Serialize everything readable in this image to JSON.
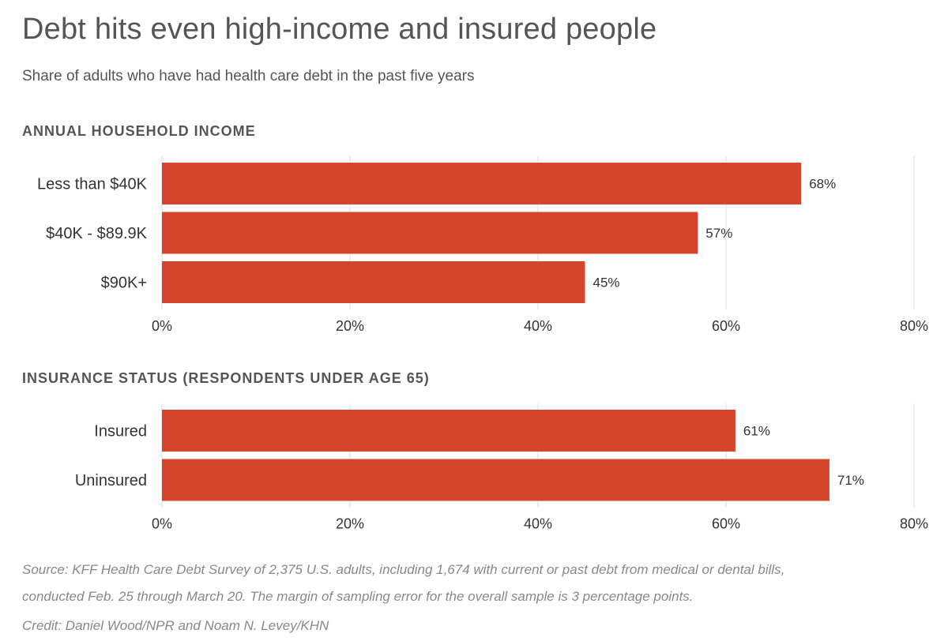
{
  "title": "Debt hits even high-income and insured people",
  "subtitle": "Share of adults who have had health care debt in the past five years",
  "colors": {
    "bar": "#d5452b",
    "grid": "#dddddd",
    "text": "#333333",
    "muted": "#555555"
  },
  "chart_data": [
    {
      "type": "bar",
      "orientation": "horizontal",
      "section_label": "ANNUAL HOUSEHOLD INCOME",
      "categories": [
        "Less than $40K",
        "$40K - $89.9K",
        "$90K+"
      ],
      "values": [
        68,
        57,
        45
      ],
      "value_labels": [
        "68%",
        "57%",
        "45%"
      ],
      "xlim": [
        0,
        80
      ],
      "ticks": [
        0,
        20,
        40,
        60,
        80
      ],
      "tick_labels": [
        "0%",
        "20%",
        "40%",
        "60%",
        "80%"
      ],
      "grid": true
    },
    {
      "type": "bar",
      "orientation": "horizontal",
      "section_label": "INSURANCE STATUS (RESPONDENTS UNDER AGE 65)",
      "categories": [
        "Insured",
        "Uninsured"
      ],
      "values": [
        61,
        71
      ],
      "value_labels": [
        "61%",
        "71%"
      ],
      "xlim": [
        0,
        80
      ],
      "ticks": [
        0,
        20,
        40,
        60,
        80
      ],
      "tick_labels": [
        "0%",
        "20%",
        "40%",
        "60%",
        "80%"
      ],
      "grid": true
    }
  ],
  "footer": {
    "source_line1": "Source: KFF Health Care Debt Survey of 2,375 U.S. adults, including 1,674 with current or past debt from medical or dental bills,",
    "source_line2": "conducted Feb. 25 through March 20. The margin of sampling error for the overall sample is 3 percentage points.",
    "credit": "Credit: Daniel Wood/NPR and Noam N. Levey/KHN"
  }
}
